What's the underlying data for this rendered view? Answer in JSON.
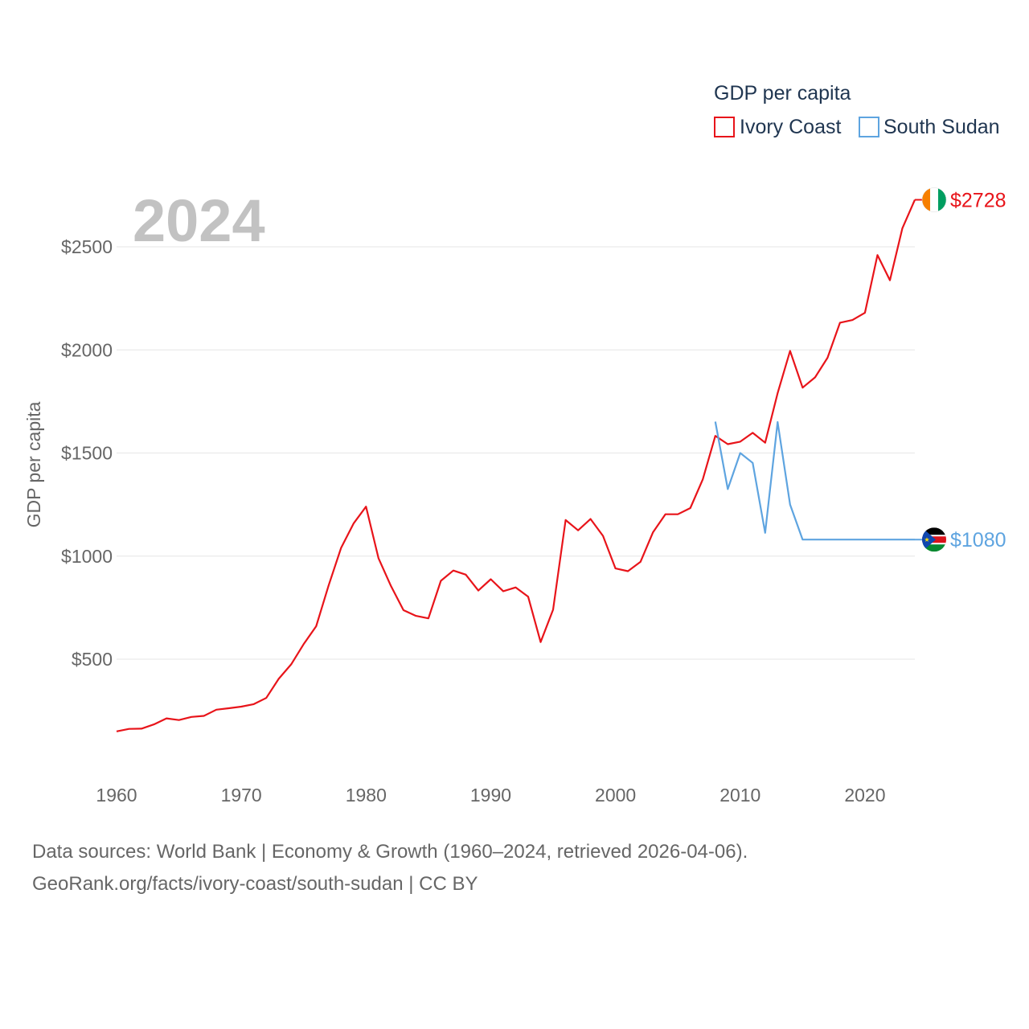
{
  "chart_data": {
    "type": "line",
    "title": "GDP per capita",
    "year_label": "2024",
    "ylabel": "GDP per capita",
    "xlabel": "",
    "xlim": [
      1960,
      2024
    ],
    "ylim": [
      150,
      2850
    ],
    "x_ticks": [
      1960,
      1970,
      1980,
      1990,
      2000,
      2010,
      2020
    ],
    "y_ticks": [
      500,
      1000,
      1500,
      2000,
      2500
    ],
    "y_tick_labels": [
      "$500",
      "$1000",
      "$1500",
      "$2000",
      "$2500"
    ],
    "legend_position": "top-right",
    "grid": true,
    "series": [
      {
        "name": "Ivory Coast",
        "color": "#e8141a",
        "end_label": "$2728",
        "flag": "ivory-coast-flag-icon",
        "x": [
          1960,
          1961,
          1962,
          1963,
          1964,
          1965,
          1966,
          1967,
          1968,
          1969,
          1970,
          1971,
          1972,
          1973,
          1974,
          1975,
          1976,
          1977,
          1978,
          1979,
          1980,
          1981,
          1982,
          1983,
          1984,
          1985,
          1986,
          1987,
          1988,
          1989,
          1990,
          1991,
          1992,
          1993,
          1994,
          1995,
          1996,
          1997,
          1998,
          1999,
          2000,
          2001,
          2002,
          2003,
          2004,
          2005,
          2006,
          2007,
          2008,
          2009,
          2010,
          2011,
          2012,
          2013,
          2014,
          2015,
          2016,
          2017,
          2018,
          2019,
          2020,
          2021,
          2022,
          2023,
          2024
        ],
        "values": [
          150,
          162,
          163,
          184,
          213,
          205,
          220,
          225,
          255,
          262,
          270,
          282,
          312,
          405,
          475,
          573,
          660,
          858,
          1040,
          1158,
          1240,
          990,
          855,
          738,
          710,
          698,
          880,
          930,
          910,
          833,
          888,
          830,
          848,
          803,
          583,
          740,
          1175,
          1125,
          1180,
          1098,
          940,
          927,
          972,
          1115,
          1203,
          1203,
          1233,
          1372,
          1583,
          1543,
          1555,
          1598,
          1550,
          1790,
          1995,
          1817,
          1867,
          1962,
          2132,
          2145,
          2180,
          2460,
          2338,
          2590,
          2728
        ]
      },
      {
        "name": "South Sudan",
        "color": "#5ea4e0",
        "end_label": "$1080",
        "flag": "south-sudan-flag-icon",
        "x": [
          2008,
          2009,
          2010,
          2011,
          2012,
          2013,
          2014,
          2015,
          2016,
          2017,
          2018,
          2019,
          2020,
          2021,
          2022,
          2023,
          2024
        ],
        "values": [
          1652,
          1325,
          1500,
          1452,
          1113,
          1650,
          1250,
          1080,
          1080,
          1080,
          1080,
          1080,
          1080,
          1080,
          1080,
          1080,
          1080
        ]
      }
    ]
  },
  "source": {
    "line1": "Data sources: World Bank | Economy & Growth (1960–2024, retrieved 2026-04-06).",
    "line2": "GeoRank.org/facts/ivory-coast/south-sudan | CC BY"
  }
}
